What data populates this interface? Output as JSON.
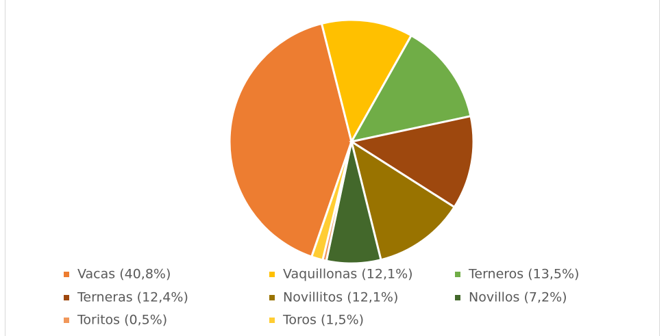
{
  "chart_data": {
    "type": "pie",
    "categories": [
      "Vacas (40,8%)",
      "Vaquillonas (12,1%)",
      "Terneros (13,5%)",
      "Terneras (12,4%)",
      "Novillitos (12,1%)",
      "Novillos (7,2%)",
      "Toritos (0,5%)",
      "Toros (1,5%)"
    ],
    "values": [
      40.8,
      12.1,
      13.5,
      12.4,
      12.1,
      7.2,
      0.5,
      1.5
    ],
    "colors": [
      "#ED7D31",
      "#FFC000",
      "#70AD47",
      "#9E480E",
      "#997300",
      "#43682B",
      "#F1975A",
      "#FFCD33"
    ],
    "legend": "bottom"
  }
}
